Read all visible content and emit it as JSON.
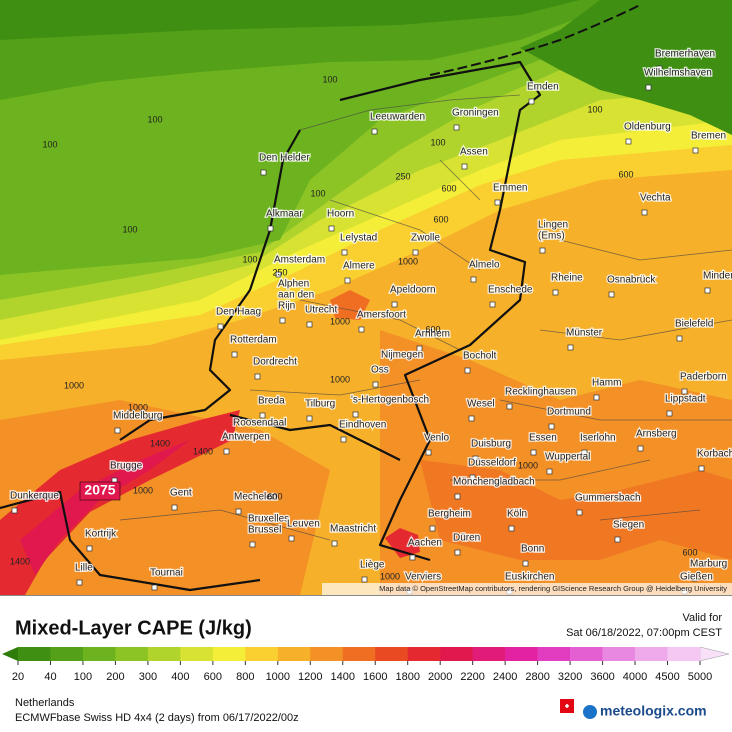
{
  "map": {
    "cities": [
      "Bremerhaven",
      "Wilhelmshaven",
      "Emden",
      "Oldenburg",
      "Bremen",
      "Leeuwarden",
      "Groningen",
      "Assen",
      "Den Helder",
      "Emmen",
      "Vechta",
      "Alkmaar",
      "Hoorn",
      "Lelystad",
      "Zwolle",
      [
        "Lingen",
        "(Ems)"
      ],
      "Amsterdam",
      "Almere",
      "Almelo",
      "Rheine",
      "Osnabrück",
      "Minden",
      [
        "Alphen",
        "aan den",
        "Rijn"
      ],
      "Apeldoorn",
      "Enschede",
      "Den Haag",
      "Utrecht",
      "Amersfoort",
      "Bielefeld",
      "Arnhem",
      "Münster",
      "Rotterdam",
      "Nijmegen",
      "Bocholt",
      "Dordrecht",
      "Oss",
      "Hamm",
      "Paderborn",
      "Middelburg",
      "Breda",
      "Tilburg",
      "'s-Hertogenbosch",
      "Wesel",
      "Recklinghausen",
      "Lippstadt",
      "Dortmund",
      "Roosendaal",
      "Eindhoven",
      "Venlo",
      "Duisburg",
      "Essen",
      "Iserlohn",
      "Arnsberg",
      "Antwerpen",
      "Düsseldorf",
      "Wuppertal",
      "Korbach",
      "Brugge",
      "Gent",
      "Mönchengladbach",
      "Dunkerque",
      "Mechelen",
      "Gummersbach",
      "Bergheim",
      "Köln",
      [
        "Bruxelles",
        "Brussel"
      ],
      "Leuven",
      "Maastricht",
      "Aachen",
      "Düren",
      "Siegen",
      "Kortrijk",
      "Bonn",
      "Marburg",
      "Lille",
      "Tournai",
      "Liège",
      "Verviers",
      "Euskirchen",
      "Gießen"
    ],
    "contour_labels": [
      100,
      100,
      100,
      100,
      100,
      100,
      100,
      100,
      250,
      250,
      600,
      600,
      600,
      1000,
      1000,
      1000,
      1000,
      1000,
      1000,
      600,
      1400,
      1400,
      1400,
      600,
      1000,
      600,
      1000
    ],
    "max_label": 2075,
    "credit": "Map data © OpenStreetMap contributors, rendering GIScience Research Group @ Heidelberg University"
  },
  "legend": {
    "title": "Mixed-Layer CAPE (J/kg)",
    "valid_label": "Valid for",
    "valid_time": "Sat 06/18/2022, 07:00pm CEST",
    "ticks": [
      20,
      40,
      100,
      200,
      300,
      400,
      600,
      800,
      1000,
      1200,
      1400,
      1600,
      1800,
      2000,
      2200,
      2400,
      2800,
      3200,
      3600,
      4000,
      4500,
      5000
    ],
    "colors": [
      "#3f8f12",
      "#54a018",
      "#6db31f",
      "#8cc426",
      "#b0d42c",
      "#d8e232",
      "#f5ee38",
      "#f9d030",
      "#f7b02a",
      "#f39026",
      "#ef6e22",
      "#ea4a22",
      "#e42a30",
      "#e0184e",
      "#e01c78",
      "#e222a0",
      "#e23cc0",
      "#e460d2",
      "#e888e0",
      "#eeaaea",
      "#f4c8f2"
    ],
    "under_color": "#2e7d0a",
    "over_color": "#f8e0f8"
  },
  "footer": {
    "region": "Netherlands",
    "model": "ECMWFbase Swiss HD 4x4 (2 days) from 06/17/2022/00z",
    "brand": "meteologix.com"
  }
}
